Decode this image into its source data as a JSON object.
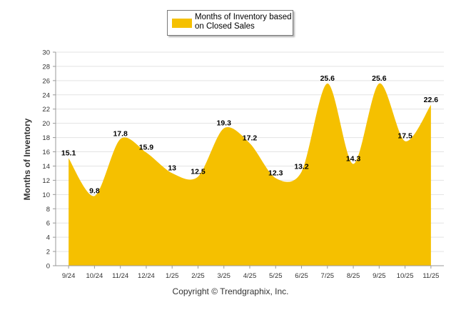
{
  "chart_data": {
    "type": "area",
    "categories": [
      "9/24",
      "10/24",
      "11/24",
      "12/24",
      "1/25",
      "2/25",
      "3/25",
      "4/25",
      "5/25",
      "6/25",
      "7/25",
      "8/25",
      "9/25",
      "10/25",
      "11/25"
    ],
    "series": [
      {
        "name": "Months of Inventory based on Closed Sales",
        "values": [
          15.1,
          9.8,
          17.8,
          15.9,
          13,
          12.5,
          19.3,
          17.2,
          12.3,
          13.2,
          25.6,
          14.3,
          25.6,
          17.5,
          22.6
        ],
        "labels": [
          "15.1",
          "9.8",
          "17.8",
          "15.9",
          "13",
          "12.5",
          "19.3",
          "17.2",
          "12.3",
          "13.2",
          "25.6",
          "14.3",
          "25.6",
          "17.5",
          "22.6"
        ],
        "color": "#f5c000"
      }
    ],
    "ylabel": "Months of Inventory",
    "xlabel": "",
    "ylim": [
      0,
      30
    ],
    "yticks": [
      "0",
      "2",
      "4",
      "6",
      "8",
      "10",
      "12",
      "14",
      "16",
      "18",
      "20",
      "22",
      "24",
      "26",
      "28",
      "30"
    ],
    "grid": true,
    "legend": "top-center"
  },
  "legend": {
    "label": "Months of Inventory based on Closed Sales",
    "swatch_color": "#f5c000"
  },
  "footer": {
    "copyright": "Copyright © Trendgraphix, Inc."
  }
}
